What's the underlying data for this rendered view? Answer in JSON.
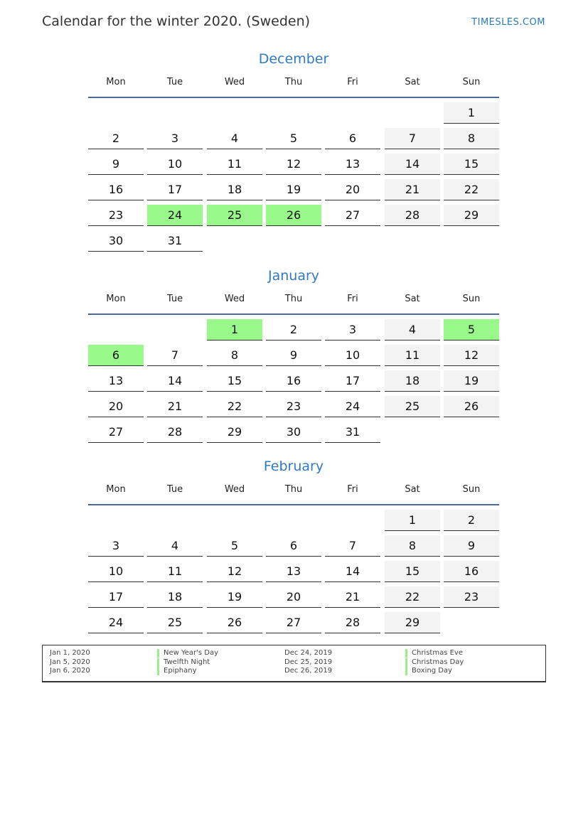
{
  "header": {
    "title": "Calendar for the winter 2020. (Sweden)",
    "brand": "TIMESLES.COM"
  },
  "weekdays": [
    "Mon",
    "Tue",
    "Wed",
    "Thu",
    "Fri",
    "Sat",
    "Sun"
  ],
  "colors": {
    "holiday": "#99f98a",
    "weekend": "#f3f3f3",
    "month_title": "#2f7bbf"
  },
  "months": [
    {
      "name": "December",
      "holidays": [
        24,
        25,
        26
      ],
      "weeks": [
        [
          null,
          null,
          null,
          null,
          null,
          null,
          1
        ],
        [
          2,
          3,
          4,
          5,
          6,
          7,
          8
        ],
        [
          9,
          10,
          11,
          12,
          13,
          14,
          15
        ],
        [
          16,
          17,
          18,
          19,
          20,
          21,
          22
        ],
        [
          23,
          24,
          25,
          26,
          27,
          28,
          29
        ],
        [
          30,
          31,
          null,
          null,
          null,
          null,
          null
        ]
      ]
    },
    {
      "name": "January",
      "holidays": [
        1,
        5,
        6
      ],
      "weeks": [
        [
          null,
          null,
          1,
          2,
          3,
          4,
          5
        ],
        [
          6,
          7,
          8,
          9,
          10,
          11,
          12
        ],
        [
          13,
          14,
          15,
          16,
          17,
          18,
          19
        ],
        [
          20,
          21,
          22,
          23,
          24,
          25,
          26
        ],
        [
          27,
          28,
          29,
          30,
          31,
          null,
          null
        ]
      ]
    },
    {
      "name": "February",
      "holidays": [],
      "weeks": [
        [
          null,
          null,
          null,
          null,
          null,
          1,
          2
        ],
        [
          3,
          4,
          5,
          6,
          7,
          8,
          9
        ],
        [
          10,
          11,
          12,
          13,
          14,
          15,
          16
        ],
        [
          17,
          18,
          19,
          20,
          21,
          22,
          23
        ],
        [
          24,
          25,
          26,
          27,
          28,
          29,
          null
        ]
      ]
    }
  ],
  "legend": [
    {
      "date": "Jan 1, 2020",
      "name": "New Year's Day",
      "date2": "Dec 24, 2019",
      "name2": "Christmas Eve"
    },
    {
      "date": "Jan 5, 2020",
      "name": "Twelfth Night",
      "date2": "Dec 25, 2019",
      "name2": "Christmas Day"
    },
    {
      "date": "Jan 6, 2020",
      "name": "Epiphany",
      "date2": "Dec 26, 2019",
      "name2": "Boxing Day"
    }
  ]
}
